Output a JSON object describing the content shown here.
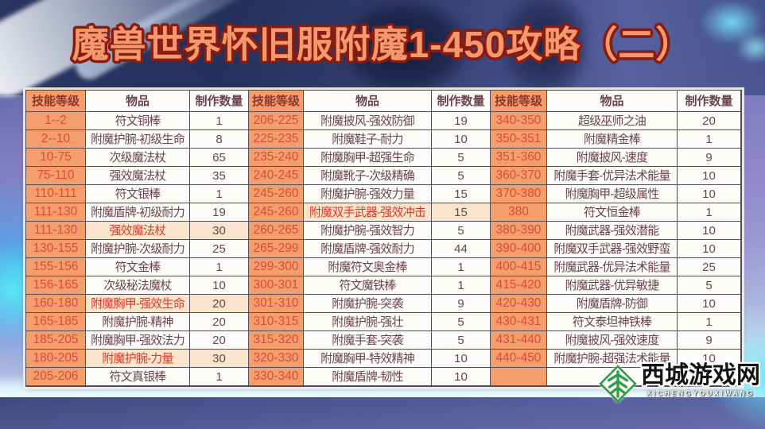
{
  "title": "魔兽世界怀旧服附魔1-450攻略（二）",
  "colors": {
    "title_fill": "#f29a6d",
    "title_outline": "#8a1b10",
    "level_cell_bg": "#f59e6d",
    "level_text": "#dd4a3c",
    "header_level_text": "#8e352c",
    "cell_bg": "#fdfcf8",
    "cell_text": "#6b4350",
    "highlight_bg": "#f9e5cb",
    "highlight_text": "#e2372a",
    "grid_line": "#534e58",
    "watermark_green": "#2f9e43"
  },
  "table": {
    "headers": {
      "level": "技能等级",
      "item": "物品",
      "qty": "制作数量"
    },
    "groups": [
      {
        "rows": [
          {
            "level": "1--2",
            "item": "符文铜棒",
            "qty": "1",
            "hl": false
          },
          {
            "level": "2--10",
            "item": "附魔护腕-初级生命",
            "qty": "8",
            "hl": false
          },
          {
            "level": "10-75",
            "item": "次级魔法杖",
            "qty": "65",
            "hl": false
          },
          {
            "level": "75-110",
            "item": "强效魔法杖",
            "qty": "35",
            "hl": false
          },
          {
            "level": "110-111",
            "item": "符文银棒",
            "qty": "1",
            "hl": false
          },
          {
            "level": "111-130",
            "item": "附魔盾牌-初级耐力",
            "qty": "19",
            "hl": false
          },
          {
            "level": "111-130",
            "item": "强效魔法杖",
            "qty": "30",
            "hl": true
          },
          {
            "level": "130-155",
            "item": "附魔护腕-次级耐力",
            "qty": "25",
            "hl": false
          },
          {
            "level": "155-156",
            "item": "符文金棒",
            "qty": "1",
            "hl": false
          },
          {
            "level": "156-165",
            "item": "次级秘法魔杖",
            "qty": "10",
            "hl": false
          },
          {
            "level": "160-180",
            "item": "附魔胸甲-强效生命",
            "qty": "20",
            "hl": true
          },
          {
            "level": "165-185",
            "item": "附魔护腕-精神",
            "qty": "20",
            "hl": false
          },
          {
            "level": "185-205",
            "item": "附魔胸甲-强效法力",
            "qty": "20",
            "hl": false
          },
          {
            "level": "180-205",
            "item": "附魔护腕-力量",
            "qty": "30",
            "hl": true
          },
          {
            "level": "205-206",
            "item": "符文真银棒",
            "qty": "1",
            "hl": false
          }
        ]
      },
      {
        "rows": [
          {
            "level": "206-225",
            "item": "附魔披风-强效防御",
            "qty": "19",
            "hl": false
          },
          {
            "level": "225-235",
            "item": "附魔鞋子-耐力",
            "qty": "10",
            "hl": false
          },
          {
            "level": "235-240",
            "item": "附魔胸甲-超强生命",
            "qty": "5",
            "hl": false
          },
          {
            "level": "240-245",
            "item": "附魔靴子-次级精确",
            "qty": "5",
            "hl": false
          },
          {
            "level": "245-260",
            "item": "附魔护腕-强效力量",
            "qty": "15",
            "hl": false
          },
          {
            "level": "245-260",
            "item": "附魔双手武器-强效冲击",
            "qty": "15",
            "hl": true
          },
          {
            "level": "260-265",
            "item": "附魔护腕-强效智力",
            "qty": "5",
            "hl": false
          },
          {
            "level": "265-299",
            "item": "附魔盾牌-强效耐力",
            "qty": "44",
            "hl": false
          },
          {
            "level": "299-300",
            "item": "附魔符文奥金棒",
            "qty": "1",
            "hl": false
          },
          {
            "level": "300-301",
            "item": "符文魔铁棒",
            "qty": "1",
            "hl": false
          },
          {
            "level": "301-310",
            "item": "附魔护腕-突袭",
            "qty": "9",
            "hl": false
          },
          {
            "level": "310-315",
            "item": "附魔护腕-强壮",
            "qty": "5",
            "hl": false
          },
          {
            "level": "315-320",
            "item": "附魔手套-突袭",
            "qty": "5",
            "hl": false
          },
          {
            "level": "320-330",
            "item": "附魔胸甲-特效精神",
            "qty": "10",
            "hl": false
          },
          {
            "level": "330-340",
            "item": "附魔盾牌-韧性",
            "qty": "10",
            "hl": false
          }
        ]
      },
      {
        "rows": [
          {
            "level": "340-350",
            "item": "超级巫师之油",
            "qty": "20",
            "hl": false
          },
          {
            "level": "350-351",
            "item": "附魔精金棒",
            "qty": "1",
            "hl": false
          },
          {
            "level": "351-360",
            "item": "附魔披风-速度",
            "qty": "9",
            "hl": false
          },
          {
            "level": "360-370",
            "item": "附魔手套-优异法术能量",
            "qty": "10",
            "hl": false
          },
          {
            "level": "370-380",
            "item": "附魔胸甲-超级属性",
            "qty": "10",
            "hl": false
          },
          {
            "level": "380",
            "item": "符文恒金棒",
            "qty": "1",
            "hl": false
          },
          {
            "level": "380-390",
            "item": "附魔武器-强效潜能",
            "qty": "10",
            "hl": false
          },
          {
            "level": "390-400",
            "item": "附魔双手武器-强效野蛮",
            "qty": "10",
            "hl": false
          },
          {
            "level": "400-415",
            "item": "附魔武器-优异法术能量",
            "qty": "25",
            "hl": false
          },
          {
            "level": "415-420",
            "item": "附魔武器-优异敏捷",
            "qty": "5",
            "hl": false
          },
          {
            "level": "420-430",
            "item": "附魔盾牌-防御",
            "qty": "10",
            "hl": false
          },
          {
            "level": "430-431",
            "item": "符文泰坦神铁棒",
            "qty": "1",
            "hl": false
          },
          {
            "level": "431-440",
            "item": "附魔披风-强效速度",
            "qty": "9",
            "hl": false
          },
          {
            "level": "440-450",
            "item": "附魔护腕-超强法术能量",
            "qty": "10",
            "hl": false
          },
          {
            "level": "",
            "item": "",
            "qty": "",
            "hl": false
          }
        ]
      }
    ]
  },
  "watermark": {
    "name": "西城游戏网",
    "pinyin": "XICHENGYOUXIWANG"
  }
}
